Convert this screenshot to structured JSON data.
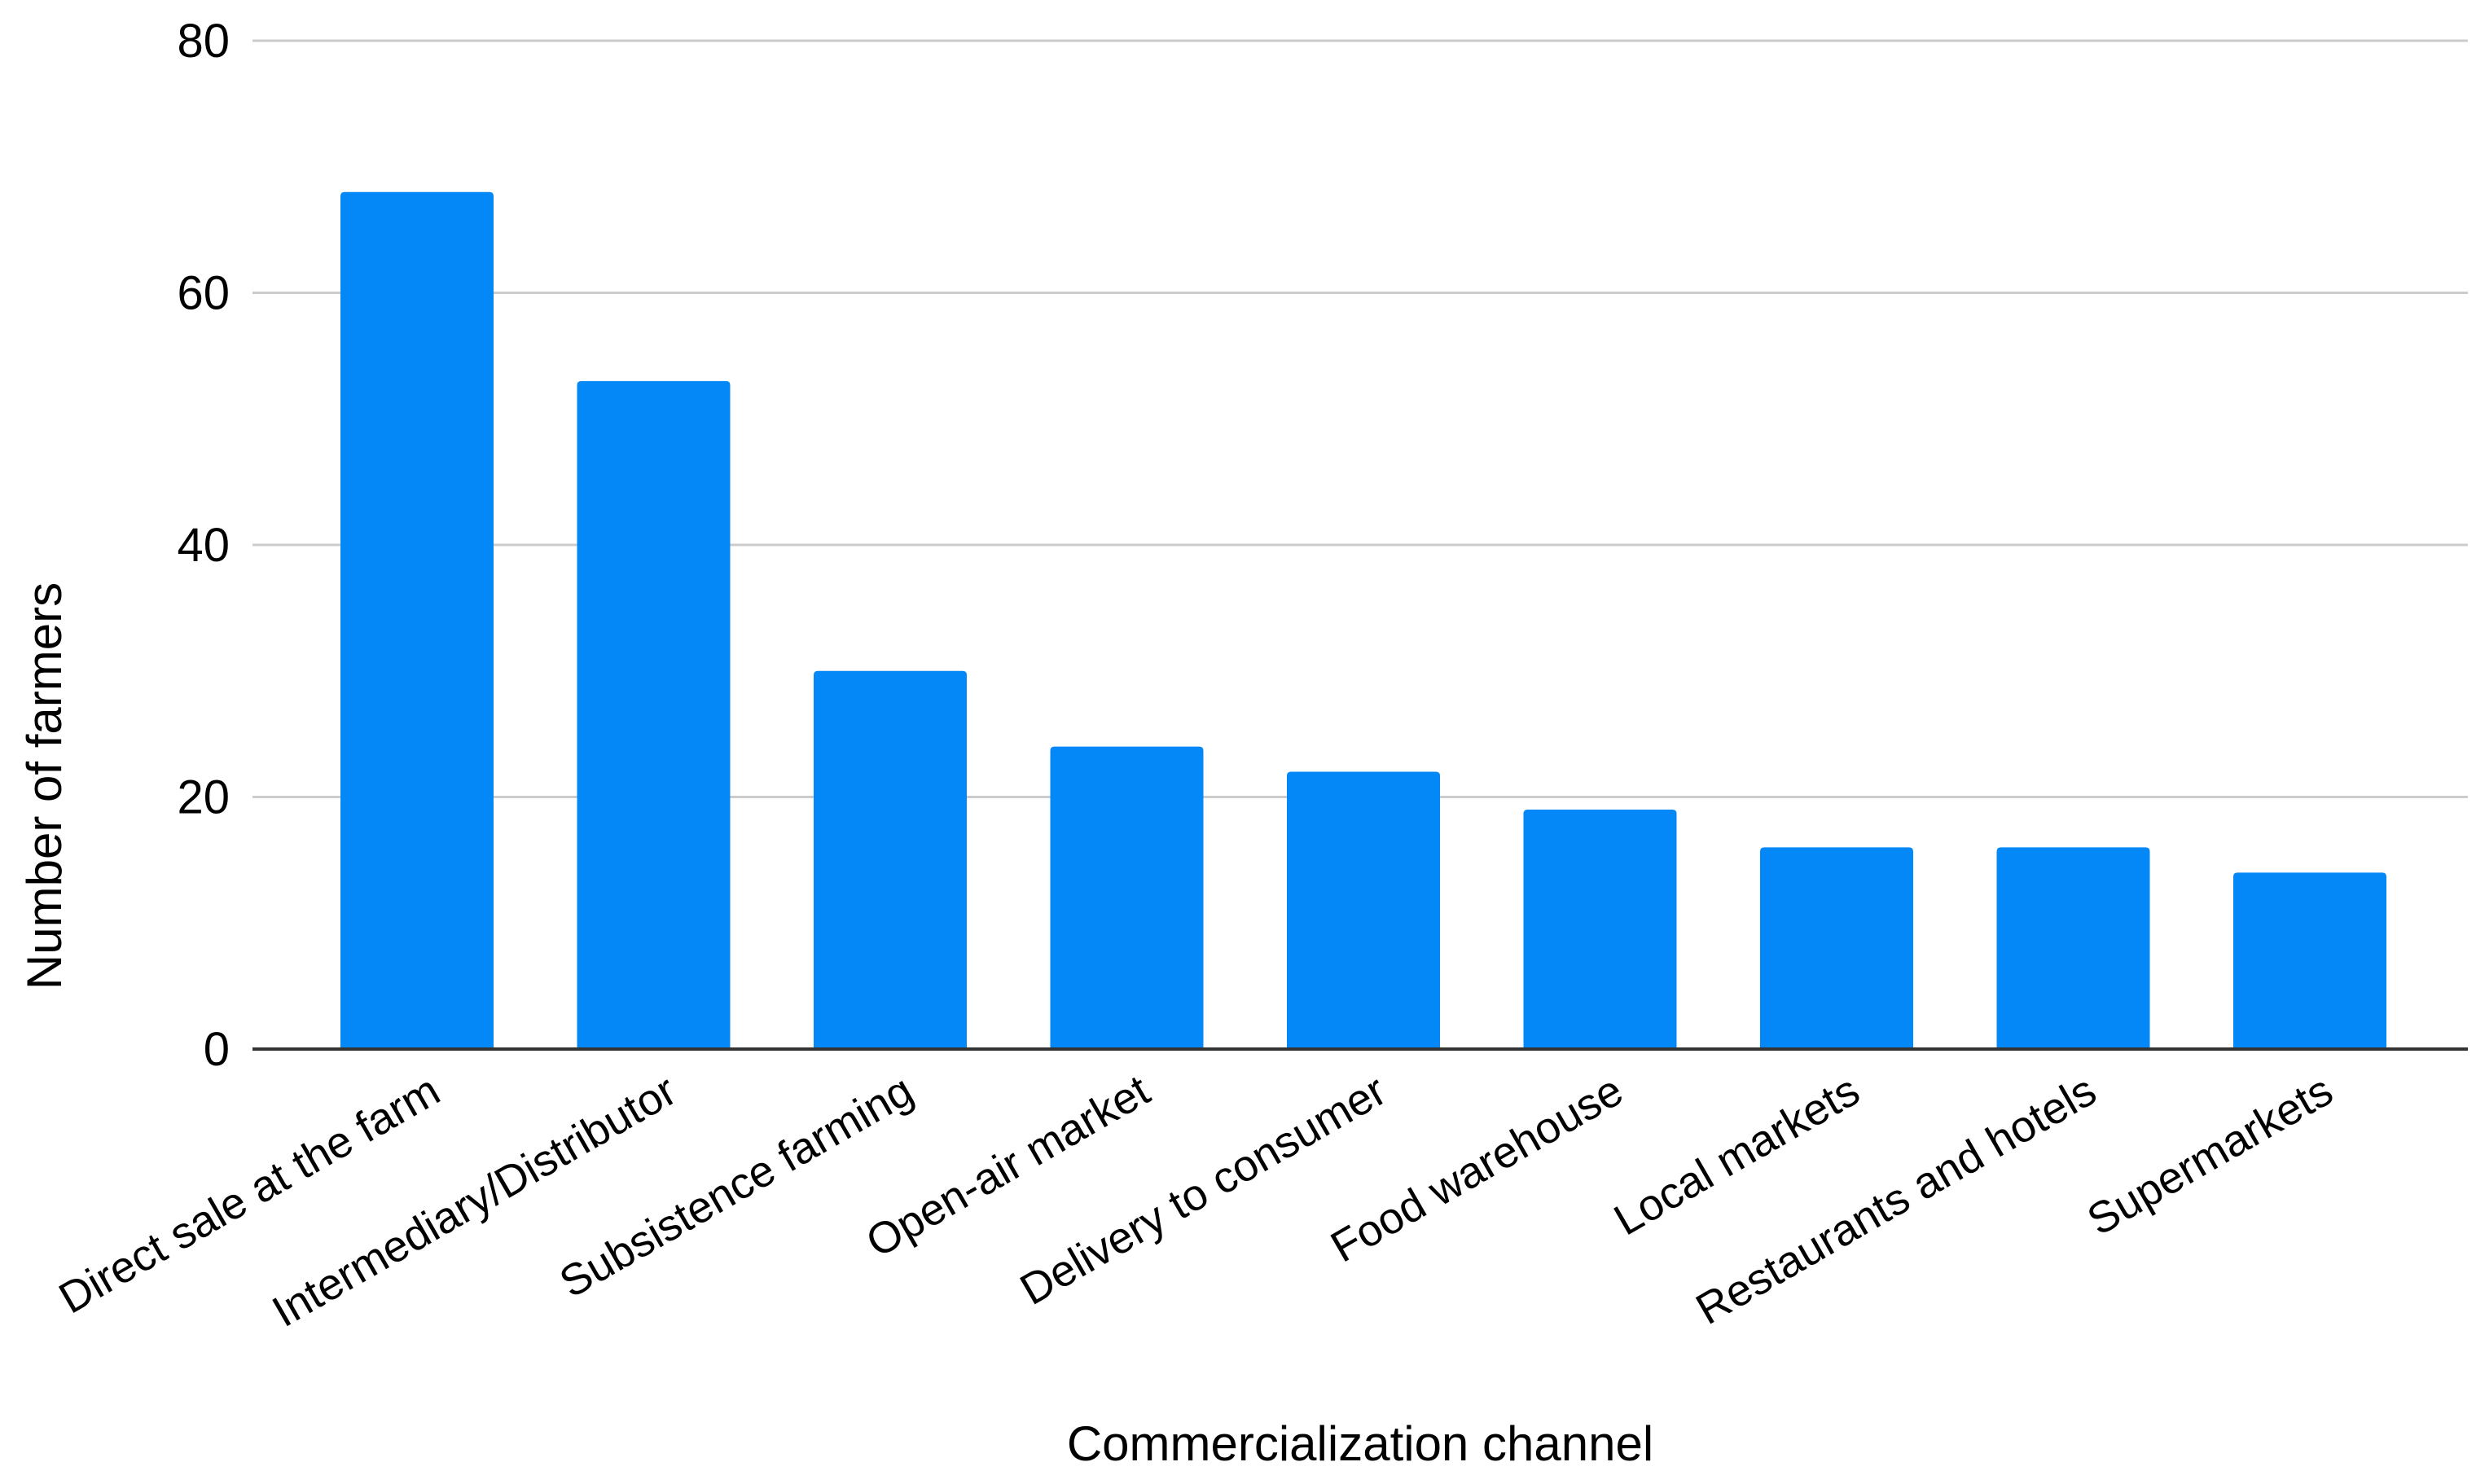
{
  "chart_data": {
    "type": "bar",
    "title": "",
    "xlabel": "Commercialization channel",
    "ylabel": "Number of farmers",
    "ylim": [
      0,
      80
    ],
    "yticks": [
      0,
      20,
      40,
      60,
      80
    ],
    "grid": true,
    "legend": "none",
    "bar_color": "#0588F7",
    "categories": [
      "Direct sale at the farm",
      "Intermediary/Distributor",
      "Subsistence farming",
      "Open-air market",
      "Delivery to consumer",
      "Food warehouse",
      "Local markets",
      "Restaurants and hotels",
      "Supermarkets"
    ],
    "values": [
      68,
      53,
      30,
      24,
      22,
      19,
      16,
      16,
      14
    ]
  }
}
